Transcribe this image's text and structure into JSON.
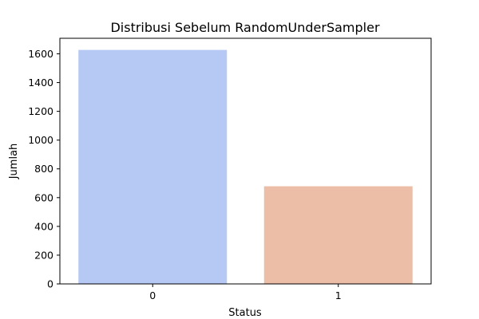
{
  "chart_data": {
    "type": "bar",
    "title": "Distribusi Sebelum RandomUnderSampler",
    "xlabel": "Status",
    "ylabel": "Jumlah",
    "categories": [
      "0",
      "1"
    ],
    "values": [
      1627,
      679
    ],
    "colors": [
      "#b6c9f4",
      "#ecbda7"
    ],
    "ylim": [
      0,
      1708
    ],
    "yticks": [
      0,
      200,
      400,
      600,
      800,
      1000,
      1200,
      1400,
      1600
    ],
    "grid": false,
    "legend": "none"
  }
}
